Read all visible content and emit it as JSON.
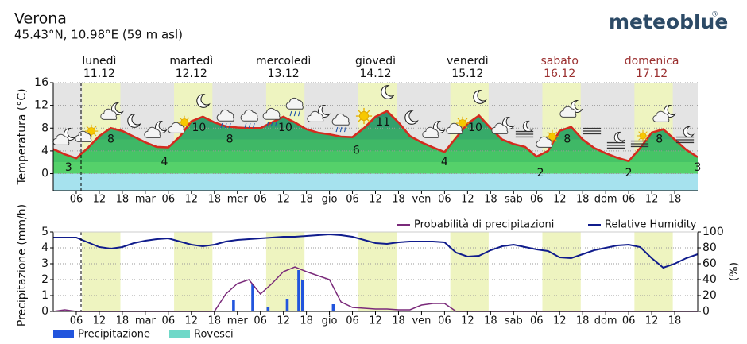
{
  "header": {
    "title": "Verona",
    "subtitle": "45.43°N, 10.98°E (59 m asl)",
    "brand": "meteoblue",
    "trademark": "®"
  },
  "chart_data": [
    {
      "type": "area",
      "ylabel": "Temperatura (°C)",
      "color": "#d42a1e",
      "ylim": [
        -3,
        16
      ],
      "yticks": [
        0,
        4,
        8,
        12,
        16
      ],
      "grid": true,
      "xlim": [
        0,
        168
      ],
      "xticks": [
        {
          "value": 6,
          "label": "06"
        },
        {
          "value": 12,
          "label": "12"
        },
        {
          "value": 18,
          "label": "18"
        },
        {
          "value": 24,
          "label": "mar"
        },
        {
          "value": 30,
          "label": "06"
        },
        {
          "value": 36,
          "label": "12"
        },
        {
          "value": 42,
          "label": "18"
        },
        {
          "value": 48,
          "label": "mer"
        },
        {
          "value": 54,
          "label": "06"
        },
        {
          "value": 60,
          "label": "12"
        },
        {
          "value": 66,
          "label": "18"
        },
        {
          "value": 72,
          "label": "gio"
        },
        {
          "value": 78,
          "label": "06"
        },
        {
          "value": 84,
          "label": "12"
        },
        {
          "value": 90,
          "label": "18"
        },
        {
          "value": 96,
          "label": "ven"
        },
        {
          "value": 102,
          "label": "06"
        },
        {
          "value": 108,
          "label": "12"
        },
        {
          "value": 114,
          "label": "18"
        },
        {
          "value": 120,
          "label": "sab"
        },
        {
          "value": 126,
          "label": "06"
        },
        {
          "value": 132,
          "label": "12"
        },
        {
          "value": 138,
          "label": "18"
        },
        {
          "value": 144,
          "label": "dom"
        },
        {
          "value": 150,
          "label": "06"
        },
        {
          "value": 156,
          "label": "12"
        },
        {
          "value": 162,
          "label": "18"
        }
      ],
      "days": [
        {
          "name": "lunedì",
          "date": "11.12",
          "color": "#111111"
        },
        {
          "name": "martedì",
          "date": "12.12",
          "color": "#111111"
        },
        {
          "name": "mercoledì",
          "date": "13.12",
          "color": "#111111"
        },
        {
          "name": "giovedì",
          "date": "14.12",
          "color": "#111111"
        },
        {
          "name": "venerdì",
          "date": "15.12",
          "color": "#111111"
        },
        {
          "name": "sabato",
          "date": "16.12",
          "color": "#9b3030"
        },
        {
          "name": "domenica",
          "date": "17.12",
          "color": "#9b3030"
        }
      ],
      "daylight": [
        [
          7.5,
          17.5
        ],
        [
          31.5,
          41.5
        ],
        [
          55.5,
          65.5
        ],
        [
          79.5,
          89.5
        ],
        [
          103.5,
          113.5
        ],
        [
          127.5,
          137.5
        ],
        [
          151.5,
          161.5
        ]
      ],
      "now": 7.25,
      "x": [
        0,
        3,
        6,
        9,
        12,
        15,
        18,
        21,
        24,
        27,
        30,
        33,
        36,
        39,
        42,
        45,
        48,
        51,
        54,
        57,
        60,
        63,
        66,
        69,
        72,
        75,
        78,
        81,
        84,
        87,
        90,
        93,
        96,
        99,
        102,
        105,
        108,
        111,
        114,
        117,
        120,
        123,
        126,
        129,
        132,
        135,
        138,
        141,
        144,
        147,
        150,
        153,
        156,
        159,
        162,
        165,
        168
      ],
      "values": [
        4.3,
        3.4,
        2.7,
        4.5,
        6.6,
        8,
        7.5,
        6.5,
        5.5,
        4.7,
        4.6,
        6.5,
        9.2,
        10,
        9,
        8.3,
        8.1,
        8,
        8,
        9,
        10,
        9,
        7.8,
        7.2,
        6.9,
        6.5,
        6.4,
        8,
        10,
        11,
        9,
        6.6,
        5.5,
        4.6,
        3.8,
        6.3,
        8.8,
        10.2,
        8,
        6,
        5.2,
        4.7,
        3,
        4,
        7.5,
        8.2,
        6,
        4.5,
        3.6,
        2.8,
        2.2,
        4.5,
        7.2,
        7.8,
        6,
        4.2,
        2.9
      ],
      "temperature_labels": [
        {
          "x": 4,
          "value": 3
        },
        {
          "x": 15,
          "value": 8
        },
        {
          "x": 29,
          "value": 4
        },
        {
          "x": 38,
          "value": 10
        },
        {
          "x": 46,
          "value": 8
        },
        {
          "x": 60.5,
          "value": 10
        },
        {
          "x": 79,
          "value": 6
        },
        {
          "x": 86,
          "value": 11
        },
        {
          "x": 102,
          "value": 4
        },
        {
          "x": 110,
          "value": 10
        },
        {
          "x": 127,
          "value": 2
        },
        {
          "x": 134,
          "value": 8
        },
        {
          "x": 150,
          "value": 2
        },
        {
          "x": 158,
          "value": 8
        },
        {
          "x": 168,
          "value": 3
        }
      ]
    },
    {
      "type": "combo",
      "ylabel": "Precipitazione (mm/h)",
      "y2label": "(%)",
      "ylim": [
        0,
        5
      ],
      "yticks": [
        0,
        1,
        2,
        3,
        4,
        5
      ],
      "y2lim": [
        0,
        100
      ],
      "y2ticks": [
        0,
        20,
        40,
        60,
        80,
        100
      ],
      "grid": true,
      "series": [
        {
          "name": "Precipitazione",
          "color": "#2255dd",
          "kind": "bar",
          "x": [
            47,
            52,
            56,
            61,
            64,
            65,
            73
          ],
          "values": [
            0.75,
            1.75,
            0.25,
            0.8,
            2.6,
            2,
            0.45
          ]
        },
        {
          "name": "Rovesci",
          "color": "#6fd8c8",
          "kind": "bar",
          "x": [],
          "values": []
        },
        {
          "name": "Probabilità di precipitazioni",
          "color": "#7a2a7a",
          "kind": "line",
          "axis": "y2",
          "x": [
            0,
            3,
            6,
            9,
            12,
            15,
            18,
            21,
            24,
            27,
            30,
            33,
            36,
            39,
            42,
            45,
            48,
            51,
            54,
            57,
            60,
            63,
            66,
            69,
            72,
            75,
            78,
            81,
            84,
            87,
            90,
            93,
            96,
            99,
            102,
            105,
            108,
            111,
            114,
            117,
            120,
            123,
            126,
            129,
            132,
            135,
            138,
            141,
            144,
            147,
            150,
            153,
            156,
            159,
            162,
            165,
            168
          ],
          "values": [
            0,
            2,
            0,
            0,
            0,
            0,
            0,
            0,
            0,
            0,
            0,
            0,
            0,
            0,
            0,
            22,
            35,
            40,
            22,
            35,
            50,
            56,
            50,
            45,
            40,
            12,
            5,
            4,
            3,
            3,
            2,
            2,
            8,
            10,
            10,
            0,
            0,
            0,
            0,
            0,
            0,
            0,
            0,
            0,
            0,
            0,
            0,
            0,
            0,
            0,
            0,
            0,
            0,
            0,
            0,
            0,
            0
          ]
        },
        {
          "name": "Relative Humidity",
          "color": "#101c8c",
          "kind": "line",
          "axis": "y2",
          "x": [
            0,
            3,
            6,
            9,
            12,
            15,
            18,
            21,
            24,
            27,
            30,
            33,
            36,
            39,
            42,
            45,
            48,
            51,
            54,
            57,
            60,
            63,
            66,
            69,
            72,
            75,
            78,
            81,
            84,
            87,
            90,
            93,
            96,
            99,
            102,
            105,
            108,
            111,
            114,
            117,
            120,
            123,
            126,
            129,
            132,
            135,
            138,
            141,
            144,
            147,
            150,
            153,
            156,
            159,
            162,
            165,
            168
          ],
          "values": [
            93,
            93,
            93,
            87,
            81,
            79,
            81,
            86,
            89,
            91,
            92,
            88,
            84,
            82,
            84,
            88,
            90,
            91,
            92,
            93,
            94,
            94,
            95,
            96,
            97,
            96,
            94,
            90,
            86,
            85,
            87,
            88,
            88,
            88,
            87,
            74,
            69,
            70,
            77,
            82,
            84,
            81,
            78,
            76,
            68,
            67,
            72,
            77,
            80,
            83,
            84,
            81,
            67,
            55,
            60,
            67,
            72
          ]
        }
      ]
    }
  ]
}
